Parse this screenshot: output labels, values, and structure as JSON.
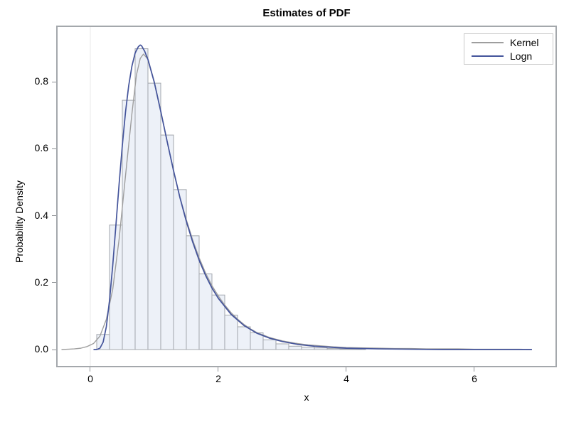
{
  "chart_data": {
    "type": "histogram_with_density_curves",
    "title": "Estimates of PDF",
    "xlabel": "x",
    "ylabel": "Probability Density",
    "x_range": [
      -0.511,
      7.267
    ],
    "y_range": [
      -0.0488,
      0.9639
    ],
    "grid": "off",
    "legend_position": "top-right-inside",
    "zero_reference_x": 0,
    "histogram": {
      "bin_width": 0.2,
      "midpoints": [
        0.2,
        0.4,
        0.6,
        0.8,
        1.0,
        1.2,
        1.4,
        1.6,
        1.8,
        2.0,
        2.2,
        2.4,
        2.6,
        2.8,
        3.0,
        3.2,
        3.4,
        3.6,
        3.8,
        4.0,
        4.2
      ],
      "densities": [
        0.045,
        0.372,
        0.745,
        0.899,
        0.796,
        0.641,
        0.478,
        0.34,
        0.226,
        0.163,
        0.103,
        0.068,
        0.05,
        0.029,
        0.017,
        0.01,
        0.007,
        0.005,
        0.003,
        0.002,
        0.002
      ]
    },
    "series": [
      {
        "name": "Kernel",
        "color": "#9e9e9e",
        "width": 1.4,
        "x": [
          -0.45,
          -0.35,
          -0.25,
          -0.15,
          -0.05,
          0.05,
          0.15,
          0.25,
          0.35,
          0.45,
          0.55,
          0.65,
          0.72,
          0.78,
          0.83,
          0.9,
          1.0,
          1.1,
          1.2,
          1.3,
          1.4,
          1.5,
          1.6,
          1.7,
          1.8,
          1.9,
          2.0,
          2.1,
          2.2,
          2.3,
          2.4,
          2.5,
          2.6,
          2.8,
          3.0,
          3.2,
          3.4,
          3.6,
          3.8,
          4.0,
          4.25,
          4.5,
          4.75,
          5.0,
          5.25,
          5.5,
          5.75,
          6.0,
          6.25,
          6.5,
          6.7,
          6.88
        ],
        "y": [
          0.0,
          0.001,
          0.002,
          0.004,
          0.009,
          0.018,
          0.04,
          0.09,
          0.18,
          0.33,
          0.52,
          0.705,
          0.82,
          0.87,
          0.883,
          0.868,
          0.8,
          0.713,
          0.622,
          0.533,
          0.455,
          0.388,
          0.327,
          0.274,
          0.229,
          0.191,
          0.16,
          0.133,
          0.11,
          0.091,
          0.075,
          0.062,
          0.051,
          0.036,
          0.026,
          0.019,
          0.014,
          0.011,
          0.008,
          0.006,
          0.005,
          0.004,
          0.003,
          0.003,
          0.002,
          0.002,
          0.002,
          0.001,
          0.001,
          0.001,
          0.001,
          0.0
        ]
      },
      {
        "name": "Logn",
        "color": "#44549b",
        "width": 1.7,
        "x": [
          0.05,
          0.1,
          0.15,
          0.2,
          0.25,
          0.3,
          0.35,
          0.4,
          0.45,
          0.5,
          0.55,
          0.6,
          0.65,
          0.7,
          0.75,
          0.78,
          0.8,
          0.85,
          0.9,
          1.0,
          1.1,
          1.2,
          1.3,
          1.4,
          1.5,
          1.6,
          1.7,
          1.8,
          1.9,
          2.0,
          2.2,
          2.4,
          2.6,
          2.8,
          3.0,
          3.25,
          3.5,
          3.75,
          4.0,
          4.5,
          5.0,
          5.5,
          6.0,
          6.5,
          6.9
        ],
        "y": [
          0.0,
          0.0,
          0.004,
          0.022,
          0.068,
          0.147,
          0.251,
          0.372,
          0.495,
          0.61,
          0.71,
          0.789,
          0.847,
          0.886,
          0.905,
          0.91,
          0.908,
          0.891,
          0.867,
          0.798,
          0.712,
          0.622,
          0.535,
          0.454,
          0.383,
          0.321,
          0.267,
          0.222,
          0.184,
          0.153,
          0.105,
          0.072,
          0.049,
          0.034,
          0.024,
          0.015,
          0.01,
          0.007,
          0.004,
          0.002,
          0.001,
          0.0,
          0.0,
          0.0,
          0.0
        ]
      }
    ]
  },
  "axes": {
    "x": {
      "label": "x",
      "tick_values": [
        0,
        2,
        4,
        6
      ],
      "tick_labels": [
        "0",
        "2",
        "4",
        "6"
      ]
    },
    "y": {
      "label": "Probability Density",
      "tick_values": [
        0.0,
        0.2,
        0.4,
        0.6,
        0.8
      ],
      "tick_labels": [
        "0.0",
        "0.2",
        "0.4",
        "0.6",
        "0.8"
      ]
    }
  },
  "legend": {
    "items": [
      {
        "label": "Kernel"
      },
      {
        "label": "Logn"
      }
    ]
  },
  "colors": {
    "background": "#ffffff",
    "frame": "#a4a8ac",
    "tick": "#8d9094",
    "zero_line": "#e9e9e9",
    "bar_fill": "#edf1f8",
    "bar_stroke": "#a3a7ad",
    "legend_border": "#c9c9c9",
    "text": "#000000"
  }
}
